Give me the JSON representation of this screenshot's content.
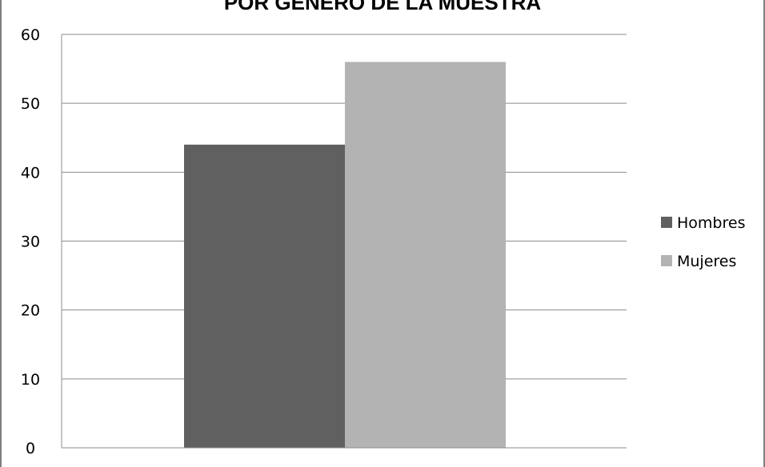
{
  "chart_data": {
    "type": "bar",
    "title": "POR GÉNERO DE LA MUESTRA",
    "categories": [
      ""
    ],
    "series": [
      {
        "name": "Hombres",
        "values": [
          44
        ],
        "color": "#606060"
      },
      {
        "name": "Mujeres",
        "values": [
          56
        ],
        "color": "#b3b3b3"
      }
    ],
    "ylim": [
      0,
      60
    ],
    "yticks": [
      0,
      10,
      20,
      30,
      40,
      50,
      60
    ],
    "grid": true,
    "legend": "right"
  }
}
